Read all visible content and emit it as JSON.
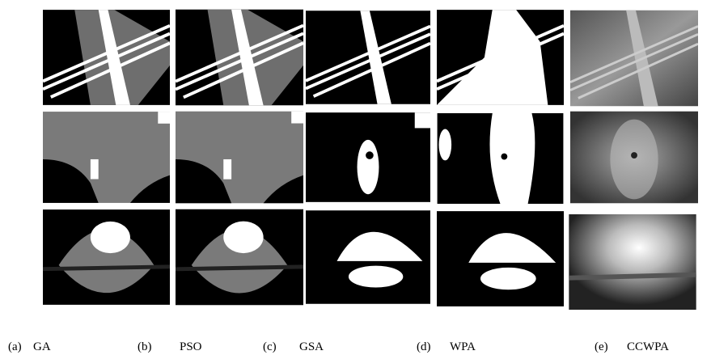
{
  "panels": [
    {
      "label": "(a)",
      "method": "GA"
    },
    {
      "label": "(b)",
      "method": "PSO"
    },
    {
      "label": "(c)",
      "method": "GSA"
    },
    {
      "label": "(d)",
      "method": "WPA"
    },
    {
      "label": "(e)",
      "method": "CCWPA"
    }
  ]
}
